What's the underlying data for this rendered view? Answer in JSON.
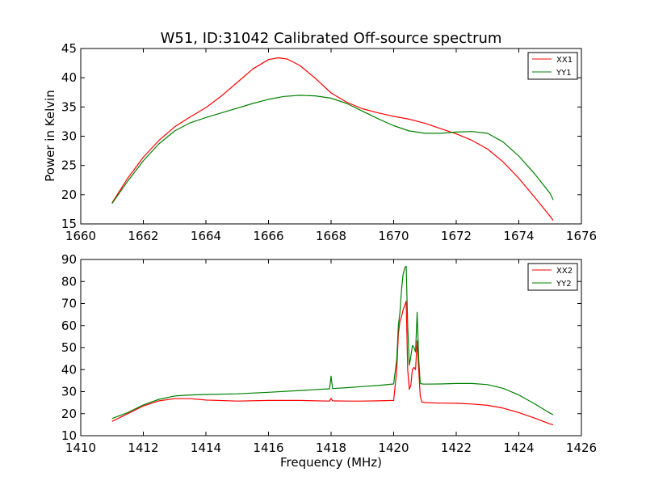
{
  "figure_title": "W51, ID:31042 Calibrated Off-source spectrum",
  "chart_data": [
    {
      "type": "line",
      "ylabel": "Power in Kelvin",
      "xlabel": "",
      "xlim": [
        1660,
        1676
      ],
      "ylim": [
        15,
        45
      ],
      "xticks": [
        1660,
        1662,
        1664,
        1666,
        1668,
        1670,
        1672,
        1674,
        1676
      ],
      "yticks": [
        15,
        20,
        25,
        30,
        35,
        40,
        45
      ],
      "grid": false,
      "legend_position": "top-right",
      "series": [
        {
          "name": "XX1",
          "color": "#ff0000",
          "x": [
            1661.0,
            1661.5,
            1662.0,
            1662.5,
            1663.0,
            1663.5,
            1664.0,
            1664.5,
            1665.0,
            1665.5,
            1666.0,
            1666.3,
            1666.6,
            1667.0,
            1667.5,
            1668.0,
            1668.5,
            1669.0,
            1669.5,
            1670.0,
            1670.5,
            1671.0,
            1671.5,
            1672.0,
            1672.5,
            1673.0,
            1673.5,
            1674.0,
            1674.5,
            1675.0,
            1675.1
          ],
          "y": [
            18.6,
            22.8,
            26.4,
            29.3,
            31.6,
            33.3,
            34.9,
            36.9,
            39.2,
            41.5,
            43.1,
            43.4,
            43.2,
            42.1,
            39.9,
            37.4,
            35.8,
            34.7,
            34.0,
            33.4,
            32.9,
            32.2,
            31.3,
            30.4,
            29.3,
            27.8,
            25.6,
            22.8,
            19.6,
            16.3,
            15.6
          ]
        },
        {
          "name": "YY1",
          "color": "#008000",
          "x": [
            1661.0,
            1661.5,
            1662.0,
            1662.5,
            1663.0,
            1663.5,
            1664.0,
            1664.5,
            1665.0,
            1665.5,
            1666.0,
            1666.5,
            1667.0,
            1667.5,
            1668.0,
            1668.5,
            1669.0,
            1669.5,
            1670.0,
            1670.5,
            1671.0,
            1671.5,
            1672.0,
            1672.5,
            1673.0,
            1673.5,
            1674.0,
            1674.5,
            1675.0,
            1675.1
          ],
          "y": [
            18.5,
            22.3,
            25.8,
            28.7,
            30.9,
            32.3,
            33.2,
            34.0,
            34.8,
            35.6,
            36.3,
            36.8,
            37.0,
            36.9,
            36.5,
            35.6,
            34.3,
            33.0,
            31.8,
            30.9,
            30.5,
            30.5,
            30.7,
            30.8,
            30.5,
            29.0,
            26.6,
            23.6,
            20.2,
            19.1
          ]
        }
      ]
    },
    {
      "type": "line",
      "ylabel": "",
      "xlabel": "Frequency (MHz)",
      "xlim": [
        1410,
        1426
      ],
      "ylim": [
        10,
        90
      ],
      "xticks": [
        1410,
        1412,
        1414,
        1416,
        1418,
        1420,
        1422,
        1424,
        1426
      ],
      "yticks": [
        10,
        20,
        30,
        40,
        50,
        60,
        70,
        80,
        90
      ],
      "grid": false,
      "legend_position": "top-right",
      "series": [
        {
          "name": "XX2",
          "color": "#ff0000",
          "x": [
            1411.0,
            1411.5,
            1412.0,
            1412.5,
            1413.0,
            1413.5,
            1414.0,
            1415.0,
            1416.0,
            1417.0,
            1417.95,
            1418.0,
            1418.05,
            1418.5,
            1419.0,
            1419.5,
            1420.0,
            1420.1,
            1420.15,
            1420.2,
            1420.25,
            1420.3,
            1420.35,
            1420.4,
            1420.45,
            1420.5,
            1420.55,
            1420.6,
            1420.65,
            1420.7,
            1420.75,
            1420.8,
            1420.85,
            1420.9,
            1421.0,
            1421.5,
            1422.0,
            1422.5,
            1423.0,
            1423.5,
            1424.0,
            1424.5,
            1425.0,
            1425.1
          ],
          "y": [
            16.5,
            20.0,
            23.5,
            25.8,
            26.8,
            26.8,
            26.2,
            25.7,
            26.0,
            26.0,
            25.7,
            27.0,
            25.8,
            25.7,
            25.7,
            25.8,
            26.0,
            40.0,
            56.0,
            62.0,
            64.0,
            67.0,
            69.0,
            71.0,
            40.0,
            31.0,
            33.0,
            40.0,
            41.0,
            40.0,
            53.0,
            40.0,
            28.0,
            25.3,
            25.0,
            24.8,
            24.7,
            24.4,
            23.8,
            22.5,
            20.5,
            18.0,
            15.3,
            15.0
          ]
        },
        {
          "name": "YY2",
          "color": "#008000",
          "x": [
            1411.0,
            1411.5,
            1412.0,
            1412.5,
            1413.0,
            1413.5,
            1414.0,
            1415.0,
            1416.0,
            1417.0,
            1417.95,
            1418.0,
            1418.05,
            1418.5,
            1419.0,
            1419.5,
            1420.0,
            1420.1,
            1420.15,
            1420.2,
            1420.25,
            1420.3,
            1420.35,
            1420.4,
            1420.45,
            1420.5,
            1420.55,
            1420.6,
            1420.65,
            1420.7,
            1420.75,
            1420.8,
            1420.85,
            1420.9,
            1421.0,
            1421.5,
            1422.0,
            1422.5,
            1423.0,
            1423.5,
            1424.0,
            1424.5,
            1425.0,
            1425.1
          ],
          "y": [
            17.8,
            20.5,
            24.0,
            26.5,
            28.0,
            28.5,
            28.7,
            29.0,
            29.7,
            30.5,
            31.3,
            37.0,
            31.4,
            31.8,
            32.3,
            32.8,
            33.5,
            45.0,
            60.0,
            66.0,
            76.0,
            83.0,
            86.0,
            87.0,
            60.0,
            42.0,
            46.0,
            51.0,
            50.0,
            48.0,
            66.0,
            45.0,
            33.8,
            33.5,
            33.4,
            33.5,
            33.7,
            33.7,
            33.2,
            31.5,
            28.5,
            24.5,
            20.2,
            19.5
          ]
        }
      ]
    }
  ]
}
